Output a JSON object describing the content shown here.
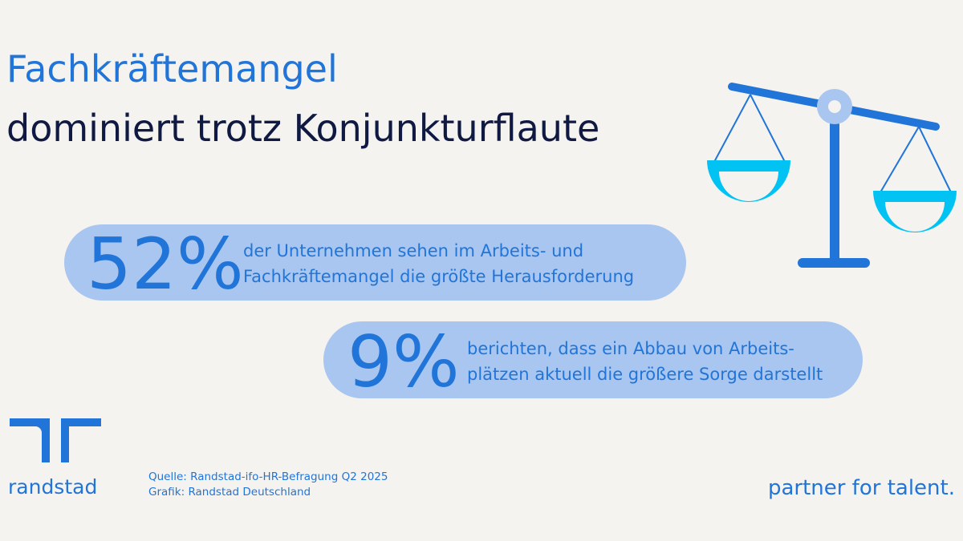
{
  "title": {
    "line1": "Fachkräftemangel",
    "line2": "dominiert trotz Konjunkturflaute"
  },
  "stats": [
    {
      "value": "52%",
      "lines": [
        "der Unternehmen sehen im Arbeits- und",
        "Fachkräftemangel die größte Herausforderung"
      ]
    },
    {
      "value": "9%",
      "lines": [
        "berichten, dass ein Abbau von Arbeits-",
        "plätzen aktuell die größere Sorge darstellt"
      ]
    }
  ],
  "footer": {
    "logo": "randstad",
    "source": "Quelle: Randstad-ifo-HR-Befragung Q2 2025",
    "credit": "Grafik: Randstad Deutschland",
    "slogan": "partner for talent."
  }
}
